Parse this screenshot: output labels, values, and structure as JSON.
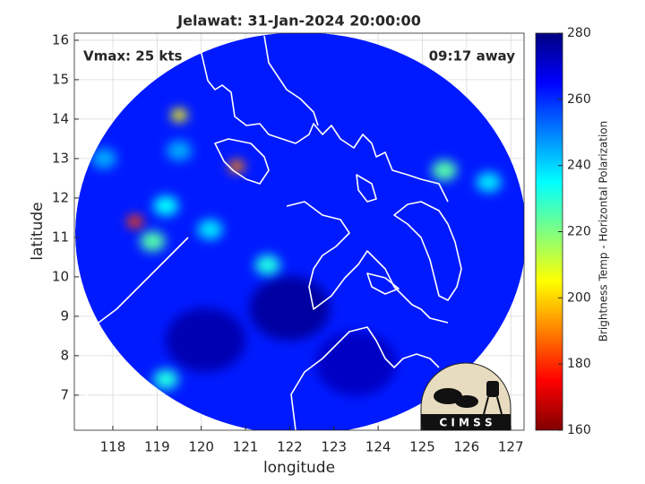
{
  "chart_data": {
    "type": "map",
    "title": "Jelawat: 31-Jan-2024 20:00:00",
    "annotations": [
      "Vmax: 25 kts",
      "09:17 away"
    ],
    "xlabel": "longitude",
    "ylabel": "latitude",
    "xlim": [
      117.13,
      127.3
    ],
    "ylim": [
      6.11,
      16.18
    ],
    "xticks": [
      118,
      119,
      120,
      121,
      122,
      123,
      124,
      125,
      126,
      127
    ],
    "yticks": [
      7,
      8,
      9,
      10,
      11,
      12,
      13,
      14,
      15,
      16
    ],
    "grid": true,
    "colorbar": {
      "label": "Brightness Temp - Horizontal Polarization",
      "lim": [
        160,
        280
      ],
      "ticks": [
        160,
        180,
        200,
        220,
        240,
        260,
        280
      ],
      "colormap": [
        "#800000",
        "#ff0000",
        "#ff8000",
        "#ffff00",
        "#80ff80",
        "#00ffff",
        "#0080ff",
        "#0000ff",
        "#000080"
      ]
    },
    "swath": {
      "center": [
        122.25,
        11.1
      ],
      "radius": 5.1,
      "value": 262
    },
    "points": [
      {
        "x": 120.1,
        "y": 8.4,
        "value": 274
      },
      {
        "x": 122.0,
        "y": 9.2,
        "value": 276
      },
      {
        "x": 123.5,
        "y": 7.8,
        "value": 272
      },
      {
        "x": 119.5,
        "y": 13.2,
        "value": 245
      },
      {
        "x": 119.2,
        "y": 11.8,
        "value": 235
      },
      {
        "x": 120.2,
        "y": 11.2,
        "value": 238
      },
      {
        "x": 118.9,
        "y": 10.9,
        "value": 225
      },
      {
        "x": 121.5,
        "y": 10.3,
        "value": 232
      },
      {
        "x": 119.2,
        "y": 7.4,
        "value": 232
      },
      {
        "x": 125.5,
        "y": 12.7,
        "value": 225
      },
      {
        "x": 126.5,
        "y": 12.4,
        "value": 238
      },
      {
        "x": 117.8,
        "y": 13.0,
        "value": 245
      },
      {
        "x": 119.5,
        "y": 14.1,
        "value": 205
      },
      {
        "x": 120.8,
        "y": 12.8,
        "value": 190
      },
      {
        "x": 118.5,
        "y": 11.4,
        "value": 182
      }
    ],
    "logo": "C I M S S"
  }
}
